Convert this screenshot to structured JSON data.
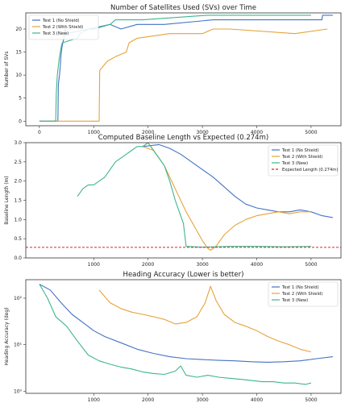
{
  "chart_data": [
    {
      "type": "line",
      "title": "Number of Satellites Used (SVs) over Time",
      "xlabel": "",
      "ylabel": "Number of SVs",
      "xlim": [
        -250,
        5550
      ],
      "ylim": [
        -1,
        23.5
      ],
      "yscale": "linear",
      "xticks": [
        0,
        1000,
        2000,
        3000,
        4000,
        5000
      ],
      "yticks": [
        0,
        5,
        10,
        15,
        20
      ],
      "grid": false,
      "legend_position": "top-left",
      "series": [
        {
          "name": "Test 1 (No Shield)",
          "color": "#4472C4",
          "x": [
            0,
            340,
            350,
            370,
            385,
            395,
            415,
            450,
            475,
            500,
            900,
            1000,
            1300,
            1500,
            1800,
            2300,
            3200,
            5200,
            5210,
            5400
          ],
          "y": [
            0,
            0,
            8,
            10,
            12,
            14,
            16,
            18,
            20,
            19,
            20,
            20,
            21,
            20,
            21,
            21,
            22,
            22,
            23,
            23
          ]
        },
        {
          "name": "Test 2 (With Shield)",
          "color": "#E5A33A",
          "x": [
            0,
            1100,
            1110,
            1250,
            1400,
            1600,
            1650,
            1800,
            2400,
            3000,
            3200,
            3500,
            4700,
            5300
          ],
          "y": [
            0,
            0,
            11,
            13,
            14,
            15,
            17,
            18,
            19,
            19,
            20,
            20,
            19,
            20
          ]
        },
        {
          "name": "Test 3 (New)",
          "color": "#3DB68E",
          "x": [
            0,
            300,
            310,
            330,
            350,
            370,
            400,
            420,
            700,
            750,
            900,
            1300,
            1400,
            1900,
            3100,
            4000,
            5000
          ],
          "y": [
            0,
            0,
            6,
            10,
            12,
            14,
            16,
            17,
            18,
            19,
            20,
            21,
            22,
            22,
            23,
            23,
            23
          ]
        }
      ]
    },
    {
      "type": "line",
      "title": "Computed Baseline Length vs Expected (0.274m)",
      "xlabel": "",
      "ylabel": "Baseline Length (m)",
      "xlim": [
        -250,
        5550
      ],
      "ylim": [
        0,
        3.0
      ],
      "yscale": "linear",
      "xticks": [
        1000,
        2000,
        3000,
        4000,
        5000
      ],
      "yticks": [
        "0.0",
        "0.5",
        "1.0",
        "1.5",
        "2.0",
        "2.5",
        "3.0"
      ],
      "grid": false,
      "legend_position": "top-right",
      "series": [
        {
          "name": "Test 1 (No Shield)",
          "color": "#4472C4",
          "x": [
            1900,
            2200,
            2400,
            2600,
            2800,
            3000,
            3200,
            3400,
            3600,
            3800,
            4000,
            4200,
            4400,
            4600,
            4800,
            5000,
            5200,
            5400
          ],
          "y": [
            2.9,
            2.95,
            2.85,
            2.7,
            2.5,
            2.3,
            2.1,
            1.85,
            1.6,
            1.4,
            1.3,
            1.25,
            1.2,
            1.2,
            1.25,
            1.2,
            1.1,
            1.05
          ]
        },
        {
          "name": "Test 2 (With Shield)",
          "color": "#E5A33A",
          "x": [
            1900,
            2100,
            2300,
            2500,
            2700,
            2900,
            3000,
            3100,
            3150,
            3250,
            3400,
            3600,
            3800,
            4000,
            4200,
            4400,
            4600,
            4800,
            5000
          ],
          "y": [
            2.9,
            2.8,
            2.4,
            1.8,
            1.2,
            0.7,
            0.45,
            0.25,
            0.2,
            0.3,
            0.6,
            0.85,
            1.0,
            1.1,
            1.15,
            1.2,
            1.15,
            1.2,
            1.2
          ]
        },
        {
          "name": "Test 3 (New)",
          "color": "#3DB68E",
          "x": [
            700,
            800,
            900,
            1000,
            1100,
            1200,
            1300,
            1400,
            1500,
            1600,
            1700,
            1800,
            1900,
            2000,
            2100,
            2200,
            2300,
            2400,
            2500,
            2600,
            2650,
            2700,
            3000,
            3500,
            4000,
            4500,
            5000
          ],
          "y": [
            1.6,
            1.8,
            1.9,
            1.9,
            2.0,
            2.1,
            2.3,
            2.5,
            2.6,
            2.7,
            2.8,
            2.9,
            2.9,
            3.0,
            2.8,
            2.6,
            2.4,
            2.0,
            1.5,
            1.1,
            0.9,
            0.3,
            0.28,
            0.3,
            0.3,
            0.29,
            0.3
          ]
        },
        {
          "name": "Expected Length (0.274m)",
          "color": "#D62728",
          "dashed": true,
          "x": [
            -250,
            5550
          ],
          "y": [
            0.274,
            0.274
          ]
        }
      ]
    },
    {
      "type": "line",
      "title": "Heading Accuracy (Lower is better)",
      "xlabel": "",
      "ylabel": "Heading Accuracy (deg)",
      "xlim": [
        -250,
        5550
      ],
      "ylim": [
        0.9,
        250
      ],
      "yscale": "log",
      "xticks": [
        1000,
        2000,
        3000,
        4000,
        5000
      ],
      "yticks": [
        1,
        10,
        100
      ],
      "ytick_labels": [
        "10⁰",
        "10¹",
        "10²"
      ],
      "grid": false,
      "legend_position": "top-right",
      "series": [
        {
          "name": "Test 1 (No Shield)",
          "color": "#4472C4",
          "x": [
            0,
            200,
            400,
            600,
            800,
            1000,
            1200,
            1500,
            1800,
            2100,
            2400,
            2700,
            3000,
            3300,
            3600,
            3900,
            4200,
            4500,
            4800,
            5100,
            5400
          ],
          "y": [
            200,
            150,
            80,
            45,
            30,
            20,
            15,
            11,
            8,
            6.5,
            5.5,
            5,
            4.8,
            4.6,
            4.5,
            4.3,
            4.2,
            4.3,
            4.5,
            5,
            5.5
          ]
        },
        {
          "name": "Test 2 (With Shield)",
          "color": "#E5A33A",
          "x": [
            1100,
            1300,
            1500,
            1700,
            1900,
            2100,
            2300,
            2500,
            2700,
            2900,
            3050,
            3150,
            3250,
            3400,
            3600,
            3800,
            4000,
            4200,
            4400,
            4600,
            4800,
            5000
          ],
          "y": [
            150,
            80,
            60,
            50,
            45,
            40,
            35,
            28,
            30,
            40,
            80,
            180,
            90,
            45,
            30,
            25,
            20,
            15,
            12,
            10,
            8,
            7
          ]
        },
        {
          "name": "Test 3 (New)",
          "color": "#3DB68E",
          "x": [
            0,
            150,
            300,
            500,
            700,
            900,
            1100,
            1300,
            1500,
            1700,
            1900,
            2100,
            2300,
            2500,
            2600,
            2700,
            2900,
            3100,
            3300,
            3500,
            3700,
            3900,
            4100,
            4300,
            4500,
            4700,
            4900,
            5000
          ],
          "y": [
            200,
            100,
            40,
            25,
            12,
            6,
            4.5,
            3.8,
            3.3,
            3,
            2.6,
            2.4,
            2.3,
            2.7,
            3.5,
            2.2,
            2,
            2.2,
            2,
            1.9,
            1.8,
            1.7,
            1.6,
            1.6,
            1.5,
            1.5,
            1.4,
            1.5
          ]
        }
      ]
    }
  ]
}
